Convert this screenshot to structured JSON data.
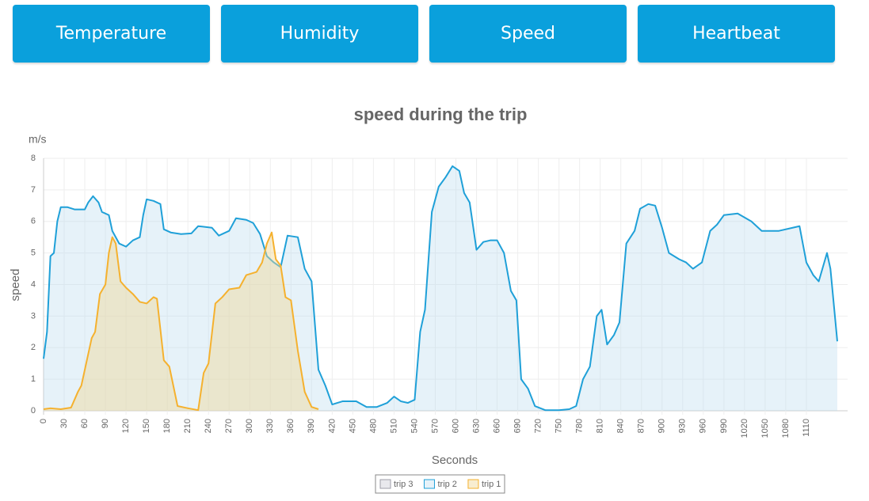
{
  "buttons": [
    "Temperature",
    "Humidity",
    "Speed",
    "Heartbeat"
  ],
  "chart_data": {
    "type": "area",
    "title": "speed during the trip",
    "y_unit": "m/s",
    "y_label": "speed",
    "x_label": "Seconds",
    "xlim": [
      0,
      1170
    ],
    "xticks": [
      0,
      30,
      60,
      90,
      120,
      150,
      180,
      210,
      240,
      270,
      300,
      330,
      360,
      390,
      420,
      450,
      480,
      510,
      540,
      570,
      600,
      630,
      660,
      690,
      720,
      750,
      780,
      810,
      840,
      870,
      900,
      930,
      960,
      990,
      1020,
      1050,
      1080,
      1110
    ],
    "ylim": [
      0,
      8
    ],
    "yticks": [
      0,
      1,
      2,
      3,
      4,
      5,
      6,
      7,
      8
    ],
    "grid": true,
    "legend": "bottom",
    "series": [
      {
        "name": "trip 3",
        "color": "#9e9ea8",
        "fill": "rgba(200,200,210,0.4)",
        "x": [],
        "values": []
      },
      {
        "name": "trip 2",
        "color": "#1fa0d8",
        "fill": "rgba(190,220,238,0.38)",
        "x": [
          0,
          5,
          10,
          15,
          20,
          25,
          35,
          45,
          60,
          65,
          72,
          80,
          85,
          95,
          100,
          110,
          120,
          130,
          140,
          145,
          150,
          160,
          170,
          175,
          185,
          200,
          215,
          225,
          245,
          255,
          270,
          280,
          295,
          305,
          315,
          325,
          335,
          345,
          355,
          370,
          380,
          390,
          400,
          410,
          420,
          435,
          455,
          470,
          485,
          500,
          510,
          520,
          530,
          540,
          548,
          555,
          565,
          575,
          585,
          595,
          605,
          612,
          620,
          630,
          640,
          650,
          660,
          670,
          680,
          688,
          695,
          705,
          715,
          730,
          750,
          765,
          775,
          785,
          795,
          805,
          812,
          820,
          830,
          838,
          848,
          860,
          868,
          880,
          890,
          900,
          910,
          925,
          935,
          945,
          958,
          970,
          980,
          990,
          1010,
          1030,
          1045,
          1070,
          1090,
          1100,
          1110,
          1120,
          1128,
          1140,
          1145,
          1155
        ],
        "values": [
          1.65,
          2.5,
          4.9,
          5.0,
          6.0,
          6.45,
          6.45,
          6.38,
          6.38,
          6.6,
          6.8,
          6.6,
          6.3,
          6.2,
          5.7,
          5.3,
          5.2,
          5.4,
          5.5,
          6.2,
          6.7,
          6.65,
          6.55,
          5.75,
          5.65,
          5.6,
          5.62,
          5.85,
          5.8,
          5.55,
          5.7,
          6.1,
          6.05,
          5.95,
          5.6,
          4.9,
          4.7,
          4.55,
          5.55,
          5.5,
          4.5,
          4.1,
          1.3,
          0.8,
          0.2,
          0.3,
          0.3,
          0.12,
          0.12,
          0.25,
          0.45,
          0.3,
          0.25,
          0.35,
          2.5,
          3.2,
          6.3,
          7.1,
          7.4,
          7.75,
          7.6,
          6.9,
          6.6,
          5.1,
          5.35,
          5.4,
          5.4,
          5.0,
          3.8,
          3.5,
          1.0,
          0.7,
          0.15,
          0.02,
          0.02,
          0.05,
          0.15,
          1.0,
          1.4,
          3.0,
          3.2,
          2.1,
          2.4,
          2.8,
          5.3,
          5.7,
          6.4,
          6.55,
          6.5,
          5.8,
          5.0,
          4.8,
          4.7,
          4.5,
          4.7,
          5.7,
          5.9,
          6.2,
          6.25,
          6.0,
          5.7,
          5.7,
          5.8,
          5.85,
          4.7,
          4.3,
          4.1,
          5.0,
          4.5,
          2.2
        ]
      },
      {
        "name": "trip 1",
        "color": "#f5b12e",
        "fill": "rgba(240,215,150,0.45)",
        "x": [
          0,
          10,
          25,
          40,
          50,
          55,
          62,
          70,
          75,
          82,
          90,
          95,
          100,
          105,
          112,
          120,
          130,
          140,
          150,
          160,
          165,
          175,
          183,
          195,
          210,
          225,
          233,
          240,
          250,
          260,
          270,
          285,
          295,
          310,
          318,
          325,
          332,
          338,
          345,
          352,
          360,
          370,
          380,
          390,
          400
        ],
        "values": [
          0.05,
          0.08,
          0.05,
          0.1,
          0.6,
          0.8,
          1.5,
          2.3,
          2.5,
          3.7,
          4.0,
          5.0,
          5.5,
          5.3,
          4.1,
          3.9,
          3.7,
          3.45,
          3.4,
          3.6,
          3.55,
          1.6,
          1.4,
          0.15,
          0.08,
          0.02,
          1.2,
          1.5,
          3.4,
          3.6,
          3.85,
          3.9,
          4.3,
          4.4,
          4.7,
          5.3,
          5.65,
          4.8,
          4.6,
          3.6,
          3.5,
          1.9,
          0.6,
          0.12,
          0.05
        ]
      }
    ]
  }
}
